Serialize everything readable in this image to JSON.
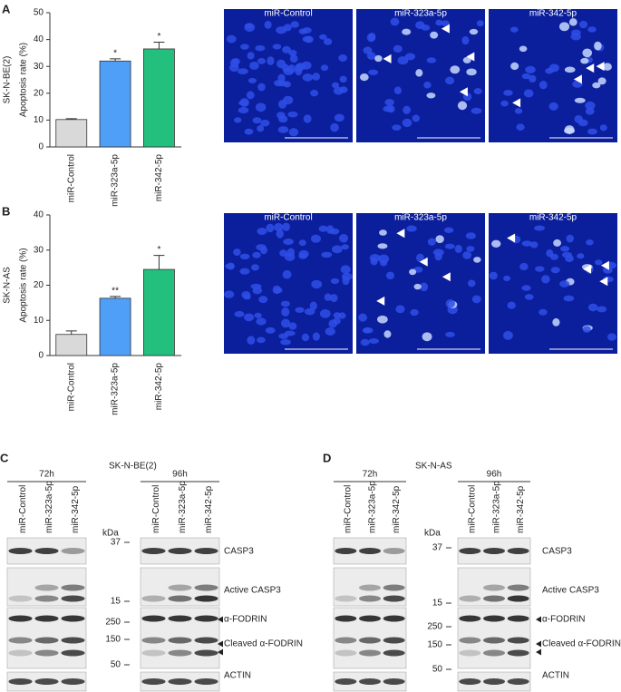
{
  "chart_data": [
    {
      "type": "bar",
      "panel": "A",
      "row_label": "SK-N-BE(2)",
      "y_label": "Apoptosis rate (%)",
      "categories": [
        "miR-Control",
        "miR-323a-5p",
        "miR-342-5p"
      ],
      "values": [
        10.2,
        32,
        36.5
      ],
      "errors": [
        0.3,
        0.8,
        2.5
      ],
      "annotations": [
        null,
        "*",
        "*"
      ],
      "colors": [
        "#d9d9d9",
        "#4f9ef8",
        "#22c07c"
      ],
      "ylim": [
        0,
        50
      ],
      "yticks": [
        0,
        10,
        20,
        30,
        40,
        50
      ]
    },
    {
      "type": "bar",
      "panel": "B",
      "row_label": "SK-N-AS",
      "y_label": "Apoptosis rate (%)",
      "categories": [
        "miR-Control",
        "miR-323a-5p",
        "miR-342-5p"
      ],
      "values": [
        6,
        16.3,
        24.5
      ],
      "errors": [
        1,
        0.5,
        4
      ],
      "annotations": [
        null,
        "**",
        "*"
      ],
      "colors": [
        "#d9d9d9",
        "#4f9ef8",
        "#22c07c"
      ],
      "ylim": [
        0,
        40
      ],
      "yticks": [
        0,
        10,
        20,
        30,
        40
      ]
    }
  ],
  "micrographs": [
    {
      "labels": [
        "miR-Control",
        "miR-323a-5p",
        "miR-342-5p"
      ]
    },
    {
      "labels": [
        "miR-Control",
        "miR-323a-5p",
        "miR-342-5p"
      ]
    }
  ],
  "blots": [
    {
      "panel": "C",
      "cell_line": "SK-N-BE(2)",
      "groups": [
        {
          "time": "72h",
          "lanes": [
            "miR-Control",
            "miR-323a-5p",
            "miR-342-5p"
          ]
        },
        {
          "time": "96h",
          "lanes": [
            "miR-Control",
            "miR-323a-5p",
            "miR-342-5p"
          ]
        }
      ],
      "kda": "kDa",
      "markers": [
        "37",
        "15",
        "250",
        "150",
        "50"
      ],
      "bands": [
        "CASP3",
        "Active CASP3",
        "α-FODRIN",
        "Cleaved α-FODRIN",
        "ACTIN"
      ]
    },
    {
      "panel": "D",
      "cell_line": "SK-N-AS",
      "groups": [
        {
          "time": "72h",
          "lanes": [
            "miR-Control",
            "miR-323a-5p",
            "miR-342-5p"
          ]
        },
        {
          "time": "96h",
          "lanes": [
            "miR-Control",
            "miR-323a-5p",
            "miR-342-5p"
          ]
        }
      ],
      "kda": "kDa",
      "markers": [
        "37",
        "15",
        "250",
        "150",
        "50"
      ],
      "bands": [
        "CASP3",
        "Active CASP3",
        "α-FODRIN",
        "Cleaved α-FODRIN",
        "ACTIN"
      ]
    }
  ]
}
